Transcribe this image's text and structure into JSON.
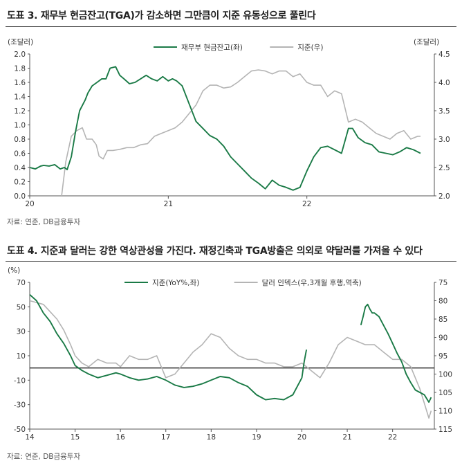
{
  "colors": {
    "green": "#1a7a46",
    "gray": "#b4b4b4",
    "axis": "#555555"
  },
  "fig3": {
    "title": "도표 3. 재무부 현금잔고(TGA)가 감소하면 그만큼이 지준 유동성으로 풀린다",
    "source": "자료: 연준, DB금융투자",
    "chart_data": {
      "type": "line",
      "title": "도표 3. 재무부 현금잔고(TGA)가 감소하면 그만큼이 지준 유동성으로 풀린다",
      "yunit_left": "(조달러)",
      "yunit_right": "(조달러)",
      "ylim_left": [
        0.0,
        2.0
      ],
      "ylim_right": [
        2.0,
        4.5
      ],
      "yticks_left": [
        "0.0",
        "0.2",
        "0.4",
        "0.6",
        "0.8",
        "1.0",
        "1.2",
        "1.4",
        "1.6",
        "1.8",
        "2.0"
      ],
      "yticks_right": [
        "2.0",
        "2.5",
        "3.0",
        "3.5",
        "4.0",
        "4.5"
      ],
      "xlim": [
        2020.0,
        2022.92
      ],
      "xticks": [
        {
          "v": 2020.0,
          "label": "20"
        },
        {
          "v": 2021.0,
          "label": "21"
        },
        {
          "v": 2022.0,
          "label": "22"
        }
      ],
      "grid": false,
      "legend": "top-center",
      "series": [
        {
          "name": "재무부 현금잔고(좌)",
          "axis": "left",
          "color": "green",
          "x": [
            2020.0,
            2020.04,
            2020.08,
            2020.1,
            2020.14,
            2020.18,
            2020.22,
            2020.25,
            2020.27,
            2020.3,
            2020.33,
            2020.36,
            2020.4,
            2020.42,
            2020.45,
            2020.5,
            2020.52,
            2020.55,
            2020.58,
            2020.62,
            2020.65,
            2020.68,
            2020.72,
            2020.76,
            2020.8,
            2020.84,
            2020.88,
            2020.92,
            2020.96,
            2021.0,
            2021.03,
            2021.06,
            2021.1,
            2021.15,
            2021.2,
            2021.25,
            2021.3,
            2021.35,
            2021.4,
            2021.45,
            2021.5,
            2021.55,
            2021.6,
            2021.65,
            2021.7,
            2021.75,
            2021.8,
            2021.85,
            2021.9,
            2021.95,
            2022.0,
            2022.05,
            2022.1,
            2022.15,
            2022.2,
            2022.25,
            2022.3,
            2022.33,
            2022.37,
            2022.42,
            2022.47,
            2022.52,
            2022.57,
            2022.62,
            2022.67,
            2022.72,
            2022.77,
            2022.82
          ],
          "y": [
            0.4,
            0.38,
            0.42,
            0.43,
            0.42,
            0.44,
            0.38,
            0.4,
            0.37,
            0.55,
            0.9,
            1.2,
            1.35,
            1.45,
            1.55,
            1.62,
            1.65,
            1.65,
            1.8,
            1.82,
            1.7,
            1.65,
            1.58,
            1.6,
            1.65,
            1.7,
            1.65,
            1.62,
            1.68,
            1.62,
            1.65,
            1.62,
            1.55,
            1.3,
            1.05,
            0.95,
            0.85,
            0.8,
            0.7,
            0.55,
            0.45,
            0.35,
            0.25,
            0.18,
            0.1,
            0.22,
            0.15,
            0.12,
            0.08,
            0.12,
            0.35,
            0.55,
            0.68,
            0.7,
            0.65,
            0.6,
            0.95,
            0.95,
            0.82,
            0.75,
            0.72,
            0.62,
            0.6,
            0.58,
            0.62,
            0.68,
            0.65,
            0.6
          ]
        },
        {
          "name": "지준(우)",
          "axis": "right",
          "color": "gray",
          "x": [
            2020.23,
            2020.26,
            2020.3,
            2020.34,
            2020.38,
            2020.41,
            2020.45,
            2020.48,
            2020.5,
            2020.53,
            2020.56,
            2020.6,
            2020.65,
            2020.7,
            2020.75,
            2020.8,
            2020.85,
            2020.9,
            2020.95,
            2021.0,
            2021.05,
            2021.1,
            2021.15,
            2021.2,
            2021.25,
            2021.3,
            2021.35,
            2021.4,
            2021.45,
            2021.5,
            2021.55,
            2021.6,
            2021.65,
            2021.7,
            2021.75,
            2021.8,
            2021.85,
            2021.9,
            2021.95,
            2022.0,
            2022.05,
            2022.1,
            2022.15,
            2022.2,
            2022.25,
            2022.3,
            2022.35,
            2022.4,
            2022.45,
            2022.5,
            2022.55,
            2022.6,
            2022.65,
            2022.7,
            2022.75,
            2022.8,
            2022.82
          ],
          "y": [
            2.0,
            2.6,
            3.05,
            3.15,
            3.2,
            3.0,
            3.0,
            2.9,
            2.7,
            2.65,
            2.8,
            2.8,
            2.82,
            2.85,
            2.85,
            2.9,
            2.92,
            3.05,
            3.1,
            3.15,
            3.2,
            3.3,
            3.45,
            3.6,
            3.85,
            3.95,
            3.95,
            3.9,
            3.92,
            4.0,
            4.1,
            4.2,
            4.22,
            4.2,
            4.15,
            4.2,
            4.2,
            4.1,
            4.15,
            4.0,
            3.95,
            3.95,
            3.75,
            3.85,
            3.8,
            3.3,
            3.35,
            3.3,
            3.2,
            3.1,
            3.05,
            3.0,
            3.1,
            3.15,
            3.0,
            3.05,
            3.05
          ]
        }
      ]
    }
  },
  "fig4": {
    "title": "도표 4. 지준과 달러는 강한 역상관성을 가진다. 재정긴축과 TGA방출은 의외로 약달러를 가져올 수 있다",
    "source": "자료: 연준, DB금융투자",
    "chart_data": {
      "type": "line",
      "title": "도표 4. 지준과 달러는 강한 역상관성을 가진다. 재정긴축과 TGA방출은 의외로 약달러를 가져올 수 있다",
      "yunit_left": "(%)",
      "ylim_left": [
        -50,
        70
      ],
      "ylim_right": [
        75,
        115
      ],
      "right_axis_inverted": true,
      "yticks_left": [
        "70",
        "50",
        "30",
        "10",
        "-10",
        "-30",
        "-50"
      ],
      "yticks_right": [
        "75",
        "80",
        "85",
        "90",
        "95",
        "100",
        "105",
        "110",
        "115"
      ],
      "xlim": [
        2014.0,
        2022.92
      ],
      "xticks": [
        {
          "v": 2014,
          "label": "14"
        },
        {
          "v": 2015,
          "label": "15"
        },
        {
          "v": 2016,
          "label": "16"
        },
        {
          "v": 2017,
          "label": "17"
        },
        {
          "v": 2018,
          "label": "18"
        },
        {
          "v": 2019,
          "label": "19"
        },
        {
          "v": 2020,
          "label": "20"
        },
        {
          "v": 2021,
          "label": "21"
        },
        {
          "v": 2022,
          "label": "22"
        }
      ],
      "zero_line": 0,
      "grid": false,
      "legend": "top-center",
      "series": [
        {
          "name": "지준(YoY%,좌)",
          "axis": "left",
          "color": "green",
          "x": [
            2014.0,
            2014.15,
            2014.3,
            2014.45,
            2014.6,
            2014.75,
            2014.9,
            2015.0,
            2015.15,
            2015.3,
            2015.5,
            2015.7,
            2015.9,
            2016.0,
            2016.2,
            2016.4,
            2016.6,
            2016.8,
            2017.0,
            2017.2,
            2017.4,
            2017.6,
            2017.8,
            2018.0,
            2018.2,
            2018.4,
            2018.6,
            2018.8,
            2019.0,
            2019.2,
            2019.4,
            2019.6,
            2019.8,
            2020.0,
            2020.05,
            2020.1
          ],
          "y": [
            60,
            55,
            45,
            38,
            28,
            20,
            10,
            2,
            -2,
            -5,
            -8,
            -6,
            -4,
            -5,
            -8,
            -10,
            -9,
            -7,
            -10,
            -14,
            -16,
            -15,
            -13,
            -10,
            -7,
            -8,
            -12,
            -15,
            -22,
            -26,
            -25,
            -26,
            -22,
            -8,
            5,
            15
          ]
        },
        {
          "name": "지준(YoY%,좌)",
          "axis": "left",
          "color": "green",
          "x": [
            2021.3,
            2021.35,
            2021.4,
            2021.45,
            2021.5,
            2021.55,
            2021.6,
            2021.7,
            2021.8,
            2021.9,
            2022.0,
            2022.1,
            2022.2,
            2022.3,
            2022.4,
            2022.5,
            2022.6,
            2022.7,
            2022.8,
            2022.85
          ],
          "y": [
            35,
            42,
            50,
            52,
            48,
            45,
            45,
            42,
            35,
            28,
            20,
            12,
            5,
            -5,
            -12,
            -18,
            -20,
            -22,
            -28,
            -24
          ]
        },
        {
          "name": "달러 인덱스(우,3개월 후행,역축)",
          "axis": "right",
          "color": "gray",
          "x": [
            2014.0,
            2014.15,
            2014.3,
            2014.45,
            2014.6,
            2014.75,
            2014.9,
            2015.0,
            2015.15,
            2015.3,
            2015.5,
            2015.7,
            2015.9,
            2016.0,
            2016.2,
            2016.4,
            2016.6,
            2016.8,
            2017.0,
            2017.2,
            2017.4,
            2017.6,
            2017.8,
            2018.0,
            2018.2,
            2018.4,
            2018.6,
            2018.8,
            2019.0,
            2019.2,
            2019.4,
            2019.6,
            2019.8,
            2020.0,
            2020.2,
            2020.4,
            2020.6,
            2020.8,
            2021.0,
            2021.2,
            2021.4,
            2021.6,
            2021.8,
            2022.0,
            2022.2,
            2022.4,
            2022.6,
            2022.7,
            2022.8,
            2022.85
          ],
          "y": [
            80,
            80.5,
            81,
            83,
            85,
            88,
            92,
            95,
            97,
            98,
            96,
            97,
            97,
            98,
            95,
            96,
            96,
            95,
            101,
            100,
            97,
            94,
            92,
            89,
            90,
            93,
            95,
            96,
            96,
            97,
            97,
            98,
            98,
            97,
            99,
            101,
            97,
            92,
            90,
            91,
            92,
            92,
            94,
            96,
            96,
            98,
            104,
            108,
            112,
            110
          ]
        }
      ]
    }
  }
}
